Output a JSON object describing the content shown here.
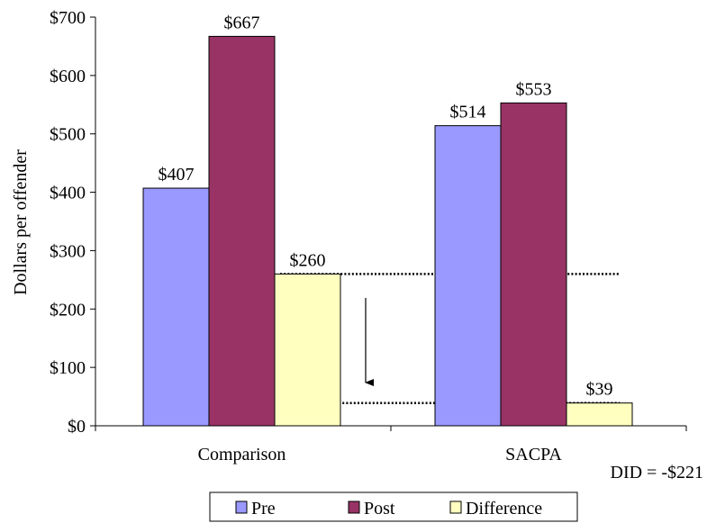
{
  "chart_data": {
    "type": "bar",
    "categories": [
      "Comparison",
      "SACPA"
    ],
    "series": [
      {
        "name": "Pre",
        "values": [
          407,
          514
        ],
        "labels": [
          "$407",
          "$514"
        ],
        "color": "#9999ff"
      },
      {
        "name": "Post",
        "values": [
          667,
          553
        ],
        "labels": [
          "$667",
          "$553"
        ],
        "color": "#993366"
      },
      {
        "name": "Difference",
        "values": [
          260,
          39
        ],
        "labels": [
          "$260",
          "$39"
        ],
        "color": "#ffffc0"
      }
    ],
    "ylabel": "Dollars per offender",
    "xlabel": "",
    "ylim": [
      0,
      700
    ],
    "yticks": [
      0,
      100,
      200,
      300,
      400,
      500,
      600,
      700
    ],
    "ytick_labels": [
      "$0",
      "$100",
      "$200",
      "$300",
      "$400",
      "$500",
      "$600",
      "$700"
    ],
    "grid": false,
    "legend": "bottom",
    "annotation": "DID = -$221",
    "reference_lines": [
      260,
      39
    ]
  }
}
